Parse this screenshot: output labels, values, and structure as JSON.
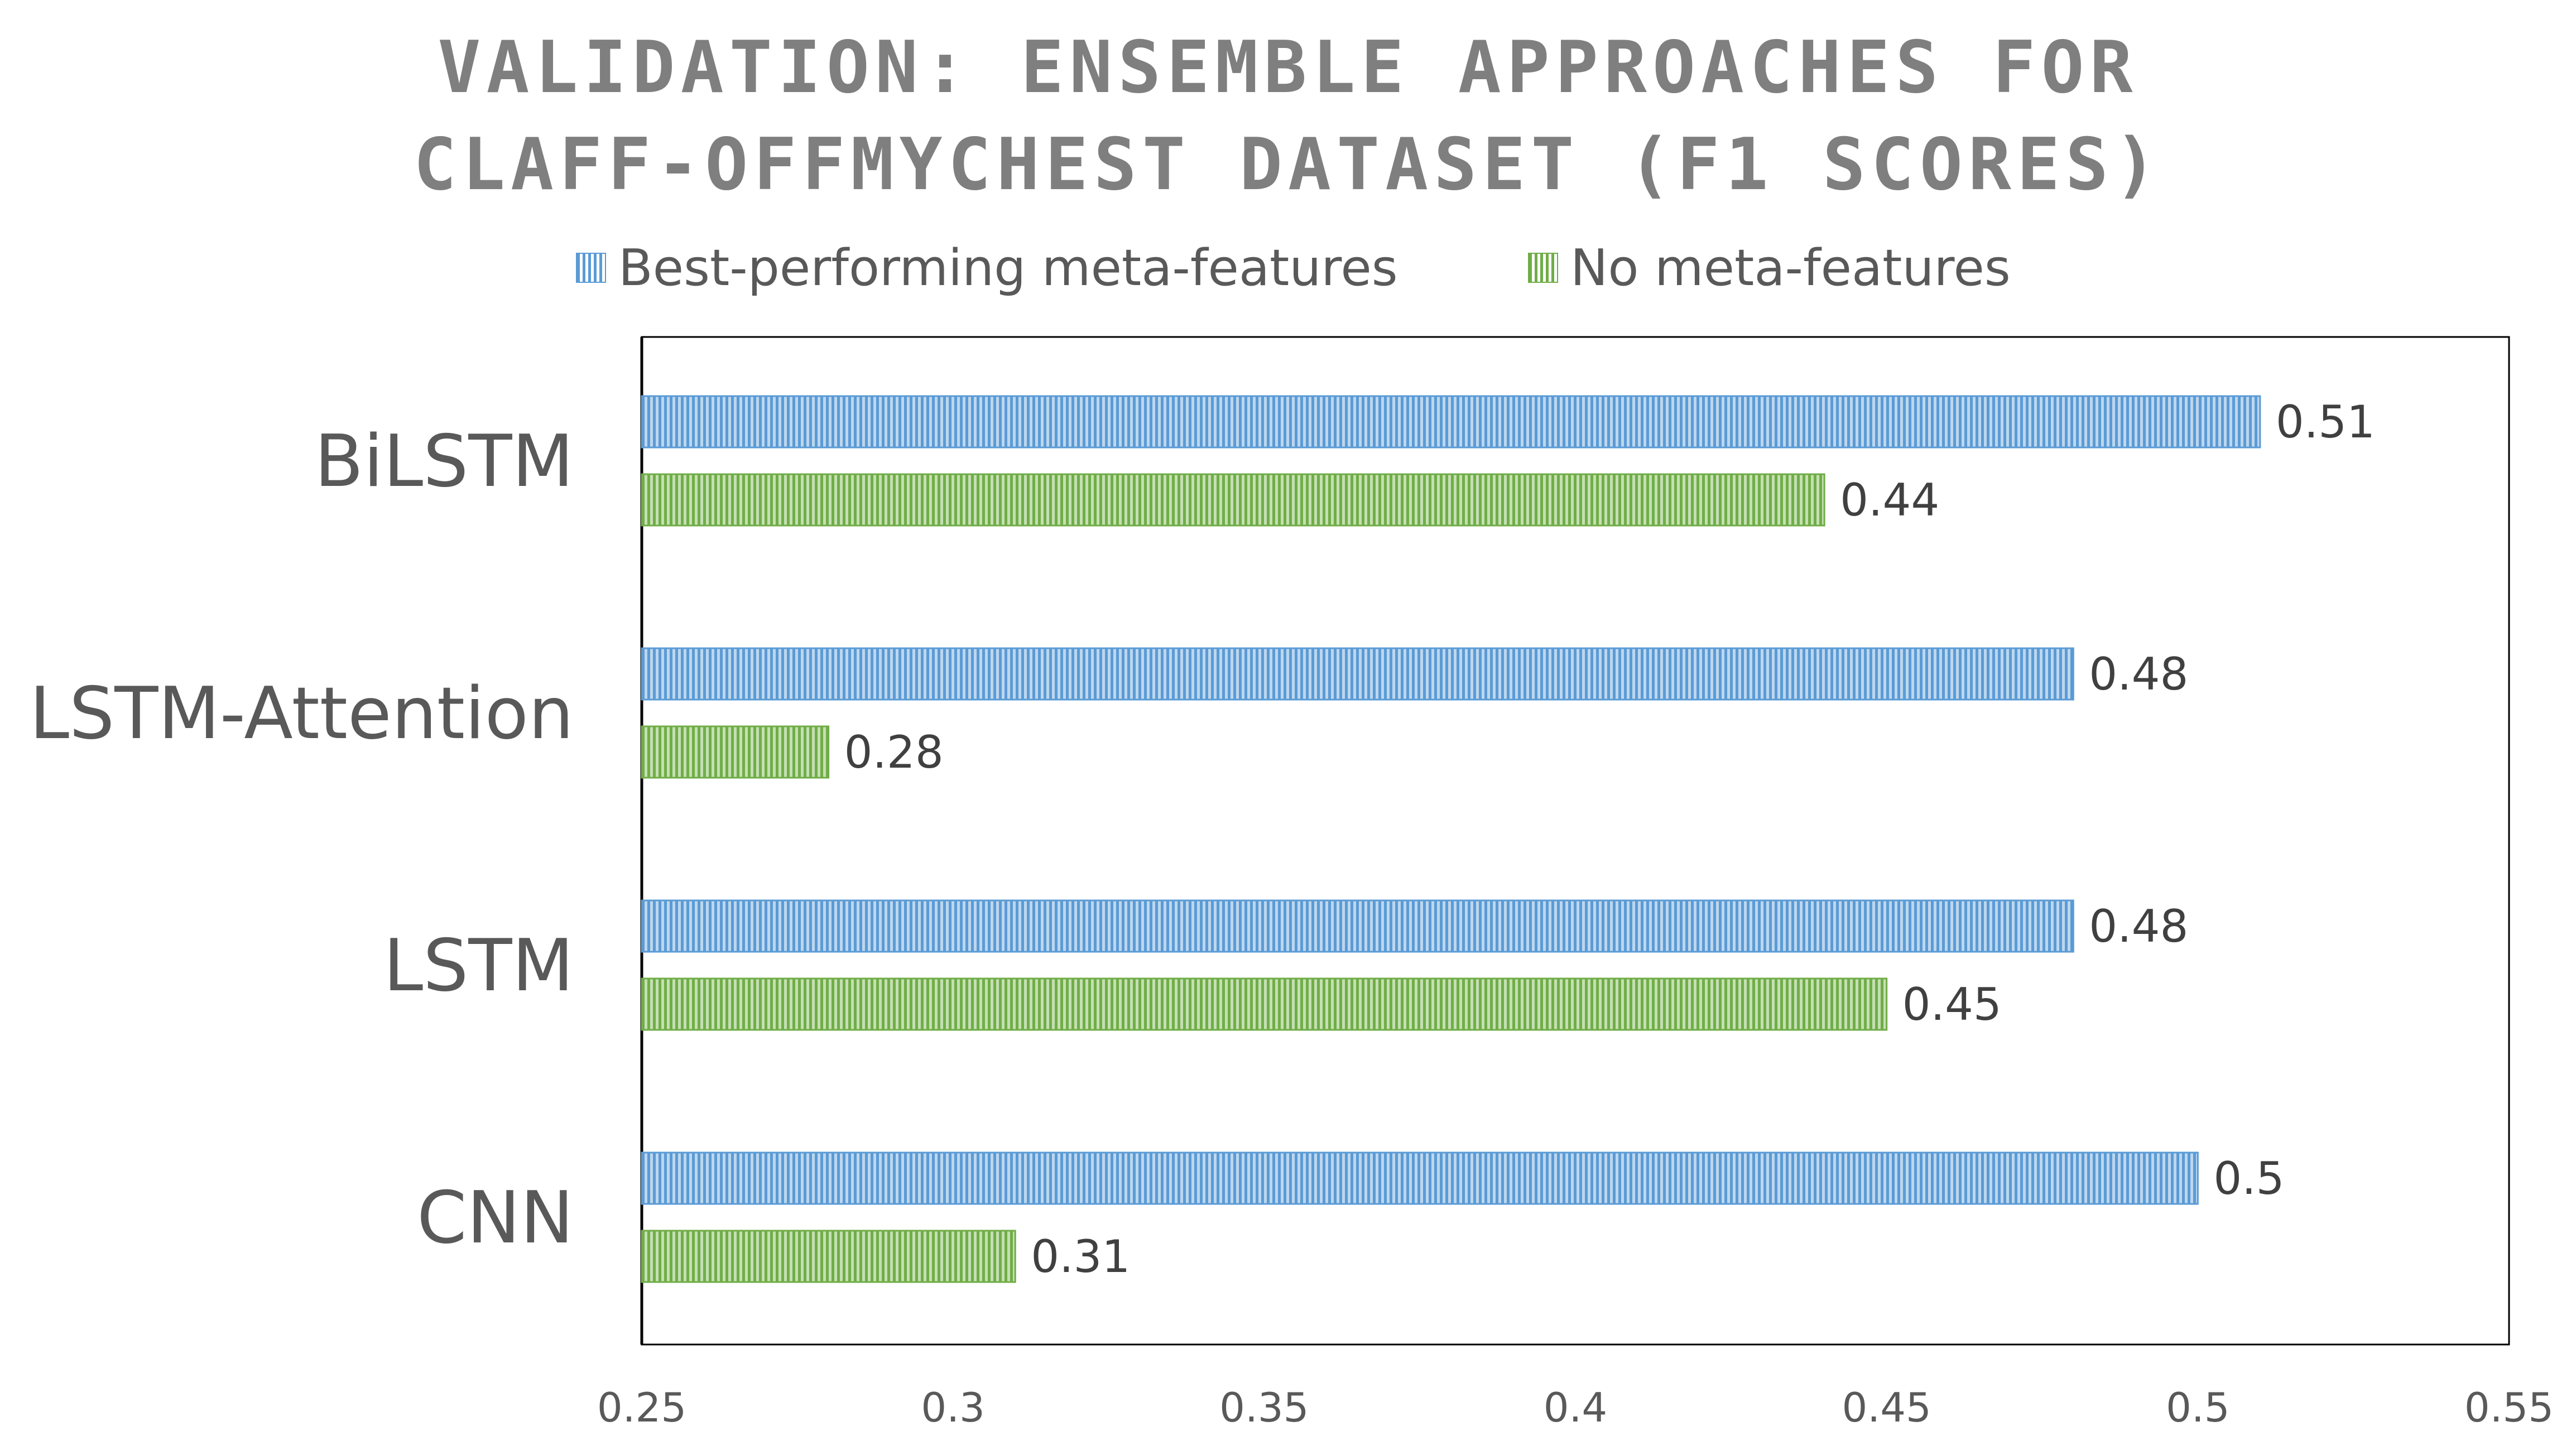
{
  "chart_data": {
    "type": "bar",
    "orientation": "horizontal",
    "title_lines": [
      "VALIDATION: ENSEMBLE APPROACHES FOR",
      "CLAFF-OFFMYCHEST DATASET (F1 SCORES)"
    ],
    "categories": [
      "BiLSTM",
      "LSTM-Attention",
      "LSTM",
      "CNN"
    ],
    "series": [
      {
        "name": "Best-performing meta-features",
        "values": [
          0.51,
          0.48,
          0.48,
          0.5
        ],
        "labels": [
          "0.51",
          "0.48",
          "0.48",
          "0.5"
        ],
        "color": "#5b9bd5"
      },
      {
        "name": "No meta-features",
        "values": [
          0.44,
          0.28,
          0.45,
          0.31
        ],
        "labels": [
          "0.44",
          "0.28",
          "0.45",
          "0.31"
        ],
        "color": "#70ad47"
      }
    ],
    "xlim": [
      0.25,
      0.55
    ],
    "xticks": [
      0.25,
      0.3,
      0.35,
      0.4,
      0.45,
      0.5,
      0.55
    ],
    "xtick_labels": [
      "0.25",
      "0.3",
      "0.35",
      "0.4",
      "0.45",
      "0.5",
      "0.55"
    ],
    "grid": false,
    "legend_position": "top",
    "bar_fill": "vertical-stripe pattern"
  }
}
